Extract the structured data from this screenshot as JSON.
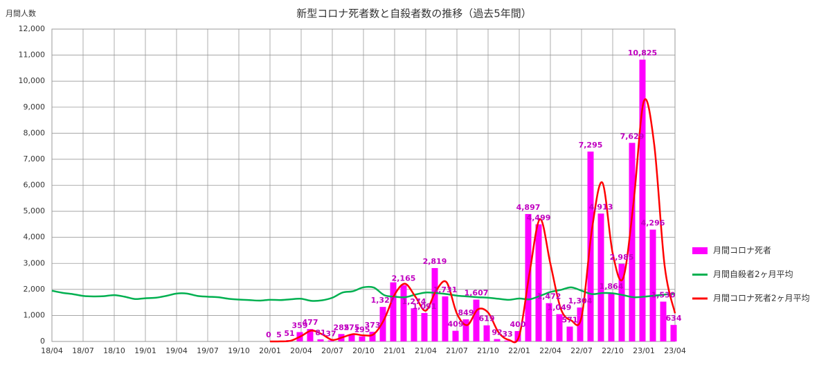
{
  "chart_data": {
    "type": "bar_line",
    "title": "新型コロナ死者数と自殺者数の推移（過去5年間）",
    "y_label": "月間人数",
    "categories": [
      "18/04",
      null,
      null,
      "18/07",
      null,
      null,
      "18/10",
      null,
      null,
      "19/01",
      null,
      null,
      "19/04",
      null,
      null,
      "19/07",
      null,
      null,
      "19/10",
      null,
      null,
      "20/01",
      null,
      null,
      "20/04",
      null,
      null,
      "20/07",
      null,
      null,
      "20/10",
      null,
      null,
      "21/01",
      null,
      null,
      "21/04",
      null,
      null,
      "21/07",
      null,
      null,
      "21/10",
      null,
      null,
      "22/01",
      null,
      null,
      "22/04",
      null,
      null,
      "22/07",
      null,
      null,
      "22/10",
      null,
      null,
      "23/01",
      null,
      null,
      "23/04"
    ],
    "ylim": [
      0,
      12000
    ],
    "yticks": [
      0,
      {
        "value": 1000,
        "label": "1,000"
      },
      {
        "value": 2000,
        "label": "2,000"
      },
      {
        "value": 3000,
        "label": "3,000"
      },
      {
        "value": 4000,
        "label": "4,000"
      },
      {
        "value": 5000,
        "label": "5,000"
      },
      {
        "value": 6000,
        "label": "6,000"
      },
      {
        "value": 7000,
        "label": "7,000"
      },
      {
        "value": 8000,
        "label": "8,000"
      },
      {
        "value": 9000,
        "label": "9,000"
      },
      {
        "value": 10000,
        "label": "10,000"
      },
      {
        "value": 11000,
        "label": "11,000"
      },
      {
        "value": 12000,
        "label": "12,000"
      }
    ],
    "grid": true,
    "legend": "right",
    "series": [
      {
        "name": "月間コロナ死者",
        "kind": "bar",
        "color": "#ff00ff",
        "values": [
          null,
          null,
          null,
          null,
          null,
          null,
          null,
          null,
          null,
          null,
          null,
          null,
          null,
          null,
          null,
          null,
          null,
          null,
          null,
          null,
          null,
          0,
          5,
          51,
          359,
          477,
          81,
          37,
          285,
          275,
          195,
          373,
          1327,
          2270,
          2165,
          1274,
          1091,
          2819,
          1731,
          409,
          849,
          1607,
          619,
          92,
          33,
          400,
          4897,
          4499,
          1472,
          1049,
          571,
          1304,
          7295,
          4913,
          1864,
          2985,
          7629,
          10825,
          4296,
          1530,
          634
        ],
        "value_labels": [
          null,
          null,
          null,
          null,
          null,
          null,
          null,
          null,
          null,
          null,
          null,
          null,
          null,
          null,
          null,
          null,
          null,
          null,
          null,
          null,
          null,
          "0",
          "5",
          "51",
          "359",
          "477",
          "81",
          "37",
          "285",
          "275",
          "195",
          "373",
          "1,327",
          null,
          "2,165",
          "1,274",
          "1,091",
          "2,819",
          "1,731",
          "409",
          "849",
          "1,607",
          "619",
          "92",
          "33",
          "400",
          "4,897",
          "4,499",
          "1,472",
          "1,049",
          "571",
          "1,304",
          "7,295",
          "4,913",
          "1,864",
          "2,985",
          "7,629",
          "10,825",
          "4,296",
          "1,530",
          "634"
        ]
      },
      {
        "name": "月間自殺者2ヶ月平均",
        "kind": "line",
        "color": "#00b050",
        "values": [
          1950,
          1870,
          1820,
          1750,
          1730,
          1740,
          1780,
          1720,
          1630,
          1660,
          1680,
          1750,
          1840,
          1840,
          1750,
          1720,
          1700,
          1640,
          1610,
          1590,
          1570,
          1600,
          1590,
          1620,
          1640,
          1560,
          1580,
          1680,
          1880,
          1930,
          2080,
          2070,
          1780,
          1720,
          1700,
          1800,
          1880,
          1860,
          1820,
          1760,
          1730,
          1700,
          1680,
          1640,
          1600,
          1650,
          1620,
          1750,
          1900,
          1980,
          2080,
          1950,
          1820,
          1860,
          1850,
          1780,
          1700,
          1720,
          1760,
          1800,
          1830
        ]
      },
      {
        "name": "月間コロナ死者2ヶ月平均",
        "kind": "line",
        "color": "#ff0000",
        "values": [
          null,
          null,
          null,
          null,
          null,
          null,
          null,
          null,
          null,
          null,
          null,
          null,
          null,
          null,
          null,
          null,
          null,
          null,
          null,
          null,
          null,
          0,
          2.5,
          28,
          205,
          418,
          279,
          59,
          161,
          280,
          235,
          284,
          850,
          1798,
          2217,
          1720,
          1182,
          1955,
          2275,
          1070,
          629,
          1228,
          1113,
          355,
          62,
          216,
          2648,
          4698,
          2985,
          1260,
          810,
          937,
          4300,
          6104,
          3388,
          2424,
          5307,
          9227,
          7560,
          2913,
          1082
        ]
      }
    ]
  }
}
